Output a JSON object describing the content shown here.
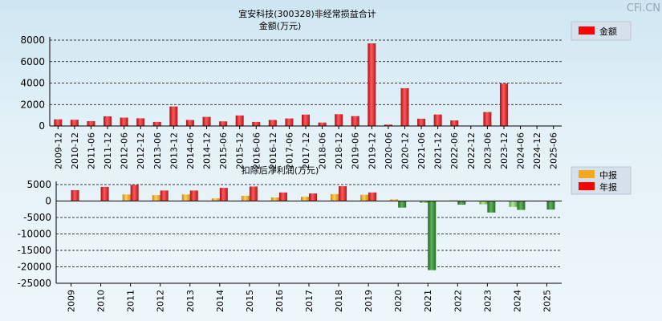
{
  "watermark": "CFi.CN",
  "chart_data": [
    {
      "type": "bar",
      "title": "宜安科技(300328)非经常损益合计",
      "ylabel": "金额(万元)",
      "ylim": [
        0,
        8000
      ],
      "yticks": [
        0,
        2000,
        4000,
        6000,
        8000
      ],
      "grid": true,
      "legend_position": "top-right",
      "categories": [
        "2009-12",
        "2010-12",
        "2011-06",
        "2011-12",
        "2012-06",
        "2012-12",
        "2013-06",
        "2013-12",
        "2014-06",
        "2014-12",
        "2015-06",
        "2015-12",
        "2016-06",
        "2016-12",
        "2017-06",
        "2017-12",
        "2018-06",
        "2018-12",
        "2019-06",
        "2019-12",
        "2020-06",
        "2020-12",
        "2021-06",
        "2021-12",
        "2022-06",
        "2022-12",
        "2023-06",
        "2023-12",
        "2024-06",
        "2024-12",
        "2025-06"
      ],
      "series": [
        {
          "name": "金额",
          "color": "#e8262a",
          "values": [
            620,
            580,
            450,
            900,
            780,
            720,
            380,
            1820,
            560,
            850,
            430,
            980,
            380,
            560,
            700,
            1060,
            320,
            1100,
            920,
            7700,
            130,
            3520,
            680,
            1070,
            520,
            0,
            1300,
            3950,
            0,
            0,
            0
          ]
        }
      ]
    },
    {
      "type": "bar",
      "title": "扣除后净利润(万元)",
      "ylim": [
        -25000,
        5000
      ],
      "yticks": [
        5000,
        0,
        -5000,
        -10000,
        -15000,
        -20000,
        -25000
      ],
      "grid": true,
      "legend_position": "top-right",
      "categories": [
        "2009",
        "2010",
        "2011",
        "2012",
        "2013",
        "2014",
        "2015",
        "2016",
        "2017",
        "2018",
        "2019",
        "2020",
        "2021",
        "2022",
        "2023",
        "2024",
        "2025"
      ],
      "series": [
        {
          "name": "中报",
          "color": "#f4a81d",
          "negative_color": "#86c46a",
          "values": [
            0,
            0,
            2000,
            1800,
            2000,
            800,
            1600,
            1100,
            1300,
            2100,
            1900,
            500,
            -600,
            200,
            -1000,
            -1800,
            0
          ]
        },
        {
          "name": "年报",
          "color": "#e8262a",
          "negative_color": "#2f8a2f",
          "values": [
            3300,
            4300,
            4900,
            3200,
            3200,
            4000,
            4400,
            2600,
            2300,
            4500,
            2600,
            -2000,
            -21000,
            -1100,
            -3500,
            -2700,
            -2600
          ]
        }
      ]
    }
  ]
}
